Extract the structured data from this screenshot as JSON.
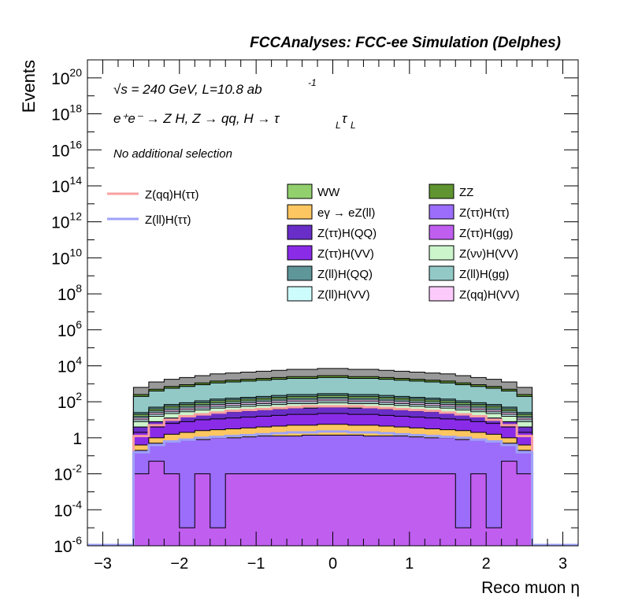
{
  "chart_data": {
    "type": "area",
    "title": "FCCAnalyses: FCC-ee Simulation (Delphes)",
    "xlabel": "Reco muon η",
    "ylabel": "Events",
    "xlim": [
      -3.2,
      3.2
    ],
    "ylim_log10": [
      -6,
      21
    ],
    "y_scale": "log",
    "x_ticks": [
      "−3",
      "−2",
      "−1",
      "0",
      "1",
      "2",
      "3"
    ],
    "y_ticks": [
      {
        "base": "10",
        "exp": "20",
        "log": 20
      },
      {
        "base": "10",
        "exp": "18",
        "log": 18
      },
      {
        "base": "10",
        "exp": "16",
        "log": 16
      },
      {
        "base": "10",
        "exp": "14",
        "log": 14
      },
      {
        "base": "10",
        "exp": "12",
        "log": 12
      },
      {
        "base": "10",
        "exp": "10",
        "log": 10
      },
      {
        "base": "10",
        "exp": "8",
        "log": 8
      },
      {
        "base": "10",
        "exp": "6",
        "log": 6
      },
      {
        "base": "10",
        "exp": "4",
        "log": 4
      },
      {
        "base": "10",
        "exp": "2",
        "log": 2
      },
      {
        "base": "1",
        "exp": "",
        "log": 0
      },
      {
        "base": "10",
        "exp": "-2",
        "log": -2
      },
      {
        "base": "10",
        "exp": "-4",
        "log": -4
      },
      {
        "base": "10",
        "exp": "-6",
        "log": -6
      }
    ],
    "annotations": {
      "energy": "√s = 240 GeV, L=10.8 ab",
      "energy_exp": "-1",
      "process": "e⁺e⁻ → Z H, Z → qq, H → τ",
      "process_sub1": "L",
      "process_tau2": "τ",
      "process_sub2": "L",
      "selection": "No additional selection"
    },
    "bin_edges": [
      -2.6,
      -2.4,
      -2.2,
      -2.0,
      -1.8,
      -1.6,
      -1.4,
      -1.2,
      -1.0,
      -0.8,
      -0.6,
      -0.4,
      -0.2,
      0.0,
      0.2,
      0.4,
      0.6,
      0.8,
      1.0,
      1.2,
      1.4,
      1.6,
      1.8,
      2.0,
      2.2,
      2.4,
      2.6
    ],
    "stack_top_log": [
      [
        -2.0,
        -1.3,
        -2.0,
        -5.0,
        -2.0,
        -5.0,
        -2.0,
        -2.0,
        -2.0,
        -2.0,
        -2.0,
        -2.0,
        -2.0,
        -2.0,
        -2.0,
        -2.0,
        -2.0,
        -2.0,
        -2.0,
        -2.0,
        -2.0,
        -5.0,
        -2.0,
        -5.0,
        -1.3,
        -2.0
      ],
      [
        -0.7,
        -0.3,
        -0.2,
        -0.1,
        -0.1,
        0.0,
        0.0,
        0.05,
        0.1,
        0.1,
        0.1,
        0.15,
        0.15,
        0.15,
        0.15,
        0.1,
        0.1,
        0.1,
        0.05,
        0.0,
        0.0,
        -0.1,
        -0.1,
        -0.2,
        -0.3,
        -0.7
      ],
      [
        -0.4,
        0.0,
        0.2,
        0.3,
        0.4,
        0.45,
        0.5,
        0.55,
        0.6,
        0.65,
        0.7,
        0.7,
        0.75,
        0.75,
        0.7,
        0.7,
        0.65,
        0.6,
        0.55,
        0.5,
        0.45,
        0.4,
        0.3,
        0.2,
        0.0,
        -0.4
      ],
      [
        0.3,
        0.6,
        0.8,
        0.9,
        1.0,
        1.05,
        1.1,
        1.15,
        1.2,
        1.25,
        1.3,
        1.3,
        1.35,
        1.35,
        1.3,
        1.3,
        1.25,
        1.2,
        1.15,
        1.1,
        1.05,
        1.0,
        0.9,
        0.8,
        0.6,
        0.3
      ],
      [
        0.6,
        0.9,
        1.1,
        1.2,
        1.3,
        1.4,
        1.45,
        1.5,
        1.55,
        1.6,
        1.65,
        1.65,
        1.7,
        1.7,
        1.65,
        1.65,
        1.6,
        1.55,
        1.5,
        1.45,
        1.4,
        1.3,
        1.2,
        1.1,
        0.9,
        0.6
      ],
      [
        0.9,
        1.2,
        1.35,
        1.45,
        1.55,
        1.65,
        1.7,
        1.75,
        1.8,
        1.85,
        1.9,
        1.9,
        1.95,
        1.95,
        1.9,
        1.9,
        1.85,
        1.8,
        1.75,
        1.7,
        1.65,
        1.55,
        1.45,
        1.35,
        1.2,
        0.9
      ],
      [
        1.0,
        1.3,
        1.45,
        1.55,
        1.65,
        1.75,
        1.8,
        1.85,
        1.9,
        1.95,
        2.0,
        2.0,
        2.05,
        2.05,
        2.0,
        2.0,
        1.95,
        1.9,
        1.85,
        1.8,
        1.75,
        1.65,
        1.55,
        1.45,
        1.3,
        1.0
      ],
      [
        1.1,
        1.4,
        1.55,
        1.65,
        1.75,
        1.85,
        1.9,
        1.95,
        2.0,
        2.05,
        2.1,
        2.1,
        2.15,
        2.15,
        2.1,
        2.1,
        2.05,
        2.0,
        1.95,
        1.9,
        1.85,
        1.75,
        1.65,
        1.55,
        1.4,
        1.1
      ],
      [
        1.2,
        1.5,
        1.65,
        1.75,
        1.85,
        1.95,
        2.0,
        2.05,
        2.1,
        2.15,
        2.2,
        2.2,
        2.25,
        2.25,
        2.2,
        2.2,
        2.15,
        2.1,
        2.05,
        2.0,
        1.95,
        1.85,
        1.75,
        1.65,
        1.5,
        1.2
      ],
      [
        1.3,
        1.6,
        1.75,
        1.85,
        1.95,
        2.05,
        2.1,
        2.15,
        2.2,
        2.25,
        2.3,
        2.3,
        2.35,
        2.35,
        2.3,
        2.3,
        2.25,
        2.2,
        2.15,
        2.1,
        2.05,
        1.95,
        1.85,
        1.75,
        1.6,
        1.3
      ],
      [
        1.4,
        1.7,
        1.85,
        1.95,
        2.05,
        2.15,
        2.2,
        2.25,
        2.3,
        2.35,
        2.4,
        2.4,
        2.45,
        2.45,
        2.4,
        2.4,
        2.35,
        2.3,
        2.25,
        2.2,
        2.15,
        2.05,
        1.95,
        1.85,
        1.7,
        1.4
      ],
      [
        2.3,
        2.6,
        2.75,
        2.85,
        2.95,
        3.05,
        3.1,
        3.15,
        3.2,
        3.25,
        3.3,
        3.3,
        3.35,
        3.35,
        3.3,
        3.3,
        3.25,
        3.2,
        3.15,
        3.1,
        3.05,
        2.95,
        2.85,
        2.75,
        2.6,
        2.3
      ],
      [
        2.4,
        2.7,
        2.85,
        2.95,
        3.05,
        3.15,
        3.2,
        3.25,
        3.3,
        3.35,
        3.4,
        3.4,
        3.45,
        3.45,
        3.4,
        3.4,
        3.35,
        3.3,
        3.25,
        3.2,
        3.15,
        3.05,
        2.95,
        2.85,
        2.7,
        2.4
      ],
      [
        2.8,
        3.1,
        3.25,
        3.35,
        3.45,
        3.55,
        3.6,
        3.65,
        3.7,
        3.75,
        3.8,
        3.8,
        3.85,
        3.85,
        3.8,
        3.8,
        3.75,
        3.7,
        3.65,
        3.6,
        3.55,
        3.45,
        3.35,
        3.25,
        3.1,
        2.8
      ]
    ],
    "series": [
      {
        "name": "Z(ττ)H(gg)",
        "color": "#c05ef0"
      },
      {
        "name": "Z(ττ)H(ττ)",
        "color": "#9b6dfa"
      },
      {
        "name": "eγ → eZ(ll)",
        "color": "#fdc660"
      },
      {
        "name": "Z(ττ)H(VV)",
        "color": "#8a2be8"
      },
      {
        "name": "Z(ττ)H(QQ)",
        "color": "#6a2ec8"
      },
      {
        "name": "Z(ll)H(QQ)",
        "color": "#5e9699"
      },
      {
        "name": "Z(ll)H(gg)",
        "color": "#92c9c6"
      },
      {
        "name": "Z(ll)H(VV)",
        "color": "#cdfcfc"
      },
      {
        "name": "Z(νν)H(VV)",
        "color": "#ccf5cc"
      },
      {
        "name": "Z(qq)H(VV)",
        "color": "#fccbfc"
      },
      {
        "name": "WW",
        "color": "#92d06e"
      },
      {
        "name": "ZZ",
        "color": "#5f9430"
      }
    ],
    "stack_order_colors": [
      "#c05ef0",
      "#9b6dfa",
      "#fdc660",
      "#8a2be8",
      "#6a2ec8",
      "#ccf5cc",
      "#cdfcfc",
      "#fccbfc",
      "#92c9c6",
      "#92d06e",
      "#5e9699",
      "#92c9c6",
      "#5f9430"
    ],
    "signal_lines": [
      {
        "name": "Z(qq)H(ττ)",
        "color": "#f8a0a0",
        "values_log": [
          0.1,
          0.7,
          1.0,
          1.2,
          1.3,
          1.4,
          1.5,
          1.55,
          1.6,
          1.65,
          1.7,
          1.75,
          1.75,
          1.75,
          1.75,
          1.7,
          1.65,
          1.6,
          1.55,
          1.5,
          1.4,
          1.3,
          1.2,
          1.0,
          0.7,
          0.1
        ]
      },
      {
        "name": "Z(ll)H(ττ)",
        "color": "#9ea2f8",
        "values_log": [
          -0.8,
          -0.4,
          -0.2,
          -0.1,
          0.0,
          0.05,
          0.1,
          0.15,
          0.2,
          0.25,
          0.3,
          0.3,
          0.35,
          0.35,
          0.3,
          0.3,
          0.25,
          0.2,
          0.15,
          0.1,
          0.05,
          0.0,
          -0.1,
          -0.2,
          -0.4,
          -0.8
        ]
      }
    ],
    "legend": {
      "left": [
        {
          "label": "Z(qq)H(ττ)",
          "color": "#f8a0a0"
        },
        {
          "label": "Z(ll)H(ττ)",
          "color": "#9ea2f8"
        }
      ],
      "right": [
        {
          "label": "WW",
          "color": "#92d06e"
        },
        {
          "label": "ZZ",
          "color": "#5f9430"
        },
        {
          "label": "eγ → eZ(ll)",
          "color": "#fdc660"
        },
        {
          "label": "Z(ττ)H(ττ)",
          "color": "#9b6dfa"
        },
        {
          "label": "Z(ττ)H(QQ)",
          "color": "#6a2ec8"
        },
        {
          "label": "Z(ττ)H(gg)",
          "color": "#c05ef0"
        },
        {
          "label": "Z(ττ)H(VV)",
          "color": "#8a2be8"
        },
        {
          "label": "Z(νν)H(VV)",
          "color": "#ccf5cc"
        },
        {
          "label": "Z(ll)H(QQ)",
          "color": "#5e9699"
        },
        {
          "label": "Z(ll)H(gg)",
          "color": "#92c9c6"
        },
        {
          "label": "Z(ll)H(VV)",
          "color": "#cdfcfc"
        },
        {
          "label": "Z(qq)H(VV)",
          "color": "#fccbfc"
        }
      ]
    }
  }
}
